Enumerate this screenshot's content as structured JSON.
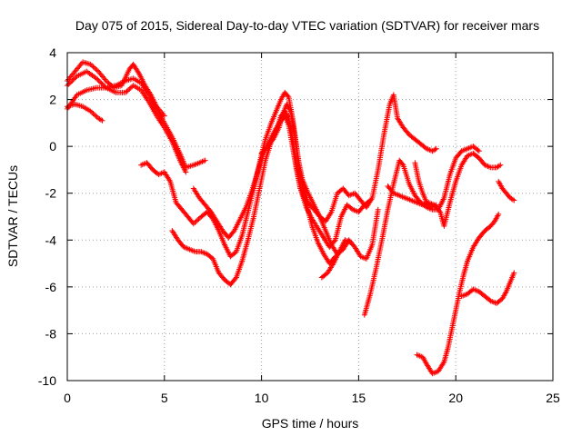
{
  "chart_data": {
    "type": "scatter",
    "title": "Day 075 of 2015, Sidereal Day-to-day VTEC variation (SDTVAR) for receiver mars",
    "xlabel": "GPS time / hours",
    "ylabel": "SDTVAR / TECUs",
    "xlim": [
      0,
      25
    ],
    "ylim": [
      -10,
      4
    ],
    "xticks": [
      0,
      5,
      10,
      15,
      20,
      25
    ],
    "yticks": [
      -10,
      -8,
      -6,
      -4,
      -2,
      0,
      2,
      4
    ],
    "grid": true,
    "marker": "+",
    "color": "#ff0000",
    "series": [
      {
        "points": [
          [
            0,
            2.8
          ],
          [
            0.4,
            3.2
          ],
          [
            0.8,
            3.6
          ],
          [
            1.2,
            3.5
          ],
          [
            1.6,
            3.2
          ],
          [
            2,
            2.8
          ],
          [
            2.4,
            2.5
          ],
          [
            2.8,
            2.6
          ],
          [
            3.2,
            3.3
          ],
          [
            3.4,
            3.5
          ],
          [
            3.7,
            3.1
          ],
          [
            4.0,
            2.6
          ],
          [
            4.3,
            2.2
          ],
          [
            4.6,
            1.7
          ],
          [
            5.0,
            1.3
          ]
        ]
      },
      {
        "points": [
          [
            0,
            2.6
          ],
          [
            0.5,
            3.0
          ],
          [
            1.0,
            3.2
          ],
          [
            1.5,
            2.9
          ],
          [
            2,
            2.5
          ],
          [
            2.5,
            2.3
          ],
          [
            3,
            2.3
          ],
          [
            3.4,
            2.6
          ],
          [
            3.8,
            2.4
          ],
          [
            4.2,
            1.9
          ],
          [
            4.6,
            1.3
          ],
          [
            5,
            0.8
          ],
          [
            5.4,
            0.2
          ],
          [
            5.8,
            -0.6
          ],
          [
            6.1,
            -1.1
          ]
        ]
      },
      {
        "points": [
          [
            0,
            1.6
          ],
          [
            0.5,
            2.2
          ],
          [
            1,
            2.4
          ],
          [
            1.5,
            2.5
          ],
          [
            2,
            2.5
          ],
          [
            2.5,
            2.6
          ],
          [
            3,
            2.8
          ],
          [
            3.4,
            2.9
          ],
          [
            3.8,
            2.7
          ],
          [
            4.2,
            2.2
          ],
          [
            4.6,
            1.6
          ],
          [
            5,
            1.0
          ],
          [
            5.4,
            0.4
          ],
          [
            5.8,
            -0.3
          ],
          [
            6.1,
            -0.9
          ],
          [
            6.5,
            -0.8
          ],
          [
            6.8,
            -0.7
          ],
          [
            7.1,
            -0.6
          ]
        ]
      },
      {
        "points": [
          [
            0,
            1.7
          ],
          [
            0.4,
            1.8
          ],
          [
            0.8,
            1.7
          ],
          [
            1.2,
            1.5
          ],
          [
            1.6,
            1.2
          ],
          [
            1.8,
            1.1
          ]
        ]
      },
      {
        "points": [
          [
            3.8,
            -0.8
          ],
          [
            4.1,
            -0.7
          ],
          [
            4.4,
            -1.0
          ],
          [
            4.7,
            -1.2
          ],
          [
            5.0,
            -1.1
          ],
          [
            5.3,
            -1.5
          ],
          [
            5.6,
            -2.4
          ],
          [
            5.9,
            -2.7
          ],
          [
            6.2,
            -3.0
          ],
          [
            6.5,
            -3.3
          ],
          [
            6.9,
            -3.0
          ],
          [
            7.2,
            -2.8
          ],
          [
            7.5,
            -3.1
          ],
          [
            7.8,
            -3.6
          ],
          [
            8.1,
            -4.2
          ],
          [
            8.4,
            -4.7
          ],
          [
            8.7,
            -4.5
          ],
          [
            9.0,
            -3.8
          ],
          [
            9.3,
            -2.8
          ],
          [
            9.6,
            -1.8
          ],
          [
            9.9,
            -0.7
          ],
          [
            10.2,
            0.3
          ],
          [
            10.5,
            1.0
          ],
          [
            10.8,
            1.6
          ],
          [
            11.0,
            2.0
          ],
          [
            11.2,
            2.3
          ],
          [
            11.4,
            2.1
          ],
          [
            11.6,
            1.2
          ],
          [
            11.8,
            0.0
          ],
          [
            12.0,
            -1.2
          ],
          [
            12.2,
            -1.9
          ],
          [
            12.4,
            -2.4
          ],
          [
            12.7,
            -2.7
          ],
          [
            13.0,
            -3.0
          ],
          [
            13.3,
            -3.2
          ],
          [
            13.6,
            -2.8
          ],
          [
            13.9,
            -2.0
          ],
          [
            14.2,
            -1.8
          ],
          [
            14.5,
            -2.1
          ],
          [
            14.8,
            -2.0
          ],
          [
            15.1,
            -2.3
          ],
          [
            15.4,
            -2.6
          ],
          [
            15.7,
            -2.2
          ],
          [
            16.0,
            -1.0
          ],
          [
            16.3,
            0.5
          ],
          [
            16.6,
            1.8
          ],
          [
            16.8,
            2.2
          ],
          [
            17.0,
            1.2
          ],
          [
            17.3,
            0.8
          ],
          [
            17.6,
            0.5
          ],
          [
            17.9,
            0.3
          ],
          [
            18.2,
            0.1
          ],
          [
            18.5,
            -0.1
          ],
          [
            18.8,
            -0.2
          ],
          [
            19.0,
            -0.1
          ]
        ]
      },
      {
        "points": [
          [
            5.4,
            -3.6
          ],
          [
            5.7,
            -4.0
          ],
          [
            6.0,
            -4.3
          ],
          [
            6.3,
            -4.4
          ],
          [
            6.6,
            -4.5
          ],
          [
            6.9,
            -4.5
          ],
          [
            7.2,
            -4.6
          ],
          [
            7.5,
            -4.8
          ],
          [
            7.8,
            -5.4
          ],
          [
            8.1,
            -5.7
          ],
          [
            8.4,
            -5.9
          ],
          [
            8.7,
            -5.6
          ],
          [
            9.0,
            -4.9
          ],
          [
            9.3,
            -4.0
          ],
          [
            9.6,
            -3.0
          ],
          [
            9.9,
            -1.8
          ],
          [
            10.2,
            -0.6
          ],
          [
            10.5,
            0.2
          ],
          [
            10.8,
            0.8
          ],
          [
            11.0,
            1.3
          ],
          [
            11.2,
            1.5
          ],
          [
            11.4,
            1.2
          ],
          [
            11.6,
            0.3
          ],
          [
            11.8,
            -0.8
          ],
          [
            12.0,
            -1.8
          ],
          [
            12.3,
            -2.6
          ],
          [
            12.6,
            -3.1
          ],
          [
            12.9,
            -3.5
          ],
          [
            13.2,
            -3.9
          ],
          [
            13.5,
            -4.3
          ],
          [
            13.8,
            -4.0
          ],
          [
            14.1,
            -3.0
          ],
          [
            14.4,
            -2.5
          ],
          [
            14.7,
            -2.7
          ],
          [
            15.0,
            -2.8
          ],
          [
            15.3,
            -2.5
          ],
          [
            15.6,
            -2.3
          ]
        ]
      },
      {
        "points": [
          [
            6.5,
            -1.8
          ],
          [
            6.8,
            -2.2
          ],
          [
            7.1,
            -2.5
          ],
          [
            7.4,
            -2.8
          ],
          [
            7.7,
            -3.2
          ],
          [
            8.0,
            -3.6
          ],
          [
            8.3,
            -3.9
          ],
          [
            8.6,
            -3.6
          ],
          [
            8.9,
            -3.1
          ],
          [
            9.2,
            -2.6
          ],
          [
            9.5,
            -1.9
          ],
          [
            9.8,
            -1.1
          ],
          [
            10.1,
            -0.3
          ],
          [
            10.4,
            0.2
          ],
          [
            10.7,
            0.7
          ],
          [
            11.0,
            1.1
          ],
          [
            11.2,
            1.3
          ],
          [
            11.4,
            0.9
          ],
          [
            11.6,
            0.0
          ],
          [
            11.8,
            -1.0
          ],
          [
            12.0,
            -1.8
          ],
          [
            12.3,
            -2.4
          ],
          [
            12.6,
            -3.4
          ],
          [
            12.9,
            -4.1
          ],
          [
            13.2,
            -4.6
          ],
          [
            13.5,
            -5.0
          ],
          [
            13.8,
            -4.7
          ]
        ]
      },
      {
        "points": [
          [
            10.0,
            -0.3
          ],
          [
            10.3,
            0.0
          ],
          [
            10.6,
            0.3
          ],
          [
            10.9,
            0.8
          ],
          [
            11.1,
            1.4
          ],
          [
            11.3,
            1.8
          ],
          [
            11.5,
            1.5
          ],
          [
            11.7,
            0.5
          ],
          [
            11.9,
            -0.6
          ],
          [
            12.1,
            -1.4
          ],
          [
            12.4,
            -2.0
          ],
          [
            12.7,
            -2.5
          ],
          [
            13.0,
            -3.0
          ],
          [
            13.3,
            -3.6
          ],
          [
            13.6,
            -4.2
          ],
          [
            13.9,
            -4.6
          ],
          [
            14.2,
            -4.4
          ],
          [
            14.5,
            -4.0
          ],
          [
            14.8,
            -4.3
          ],
          [
            15.1,
            -4.7
          ],
          [
            15.4,
            -4.8
          ],
          [
            15.7,
            -4.2
          ],
          [
            16.0,
            -2.7
          ]
        ]
      },
      {
        "points": [
          [
            13.1,
            -5.6
          ],
          [
            13.4,
            -5.4
          ],
          [
            13.7,
            -5.0
          ],
          [
            14.0,
            -4.5
          ],
          [
            14.3,
            -4.0
          ],
          [
            14.6,
            -4.1
          ]
        ]
      },
      {
        "points": [
          [
            15.3,
            -7.2
          ],
          [
            15.6,
            -6.3
          ],
          [
            15.9,
            -5.2
          ],
          [
            16.2,
            -4.0
          ],
          [
            16.5,
            -2.7
          ],
          [
            16.8,
            -1.6
          ],
          [
            17.1,
            -0.6
          ],
          [
            17.3,
            -0.8
          ],
          [
            17.6,
            -1.6
          ],
          [
            17.9,
            -2.1
          ],
          [
            18.2,
            -2.4
          ],
          [
            18.5,
            -2.6
          ],
          [
            18.8,
            -2.7
          ],
          [
            19.1,
            -2.7
          ],
          [
            19.4,
            -2.2
          ],
          [
            19.7,
            -1.2
          ],
          [
            20.0,
            -0.5
          ],
          [
            20.3,
            -0.2
          ],
          [
            20.6,
            -0.1
          ],
          [
            20.9,
            0.0
          ],
          [
            21.2,
            -0.2
          ]
        ]
      },
      {
        "points": [
          [
            16.5,
            -1.7
          ],
          [
            16.8,
            -2.0
          ],
          [
            17.1,
            -2.1
          ],
          [
            17.4,
            -2.2
          ],
          [
            17.7,
            -2.3
          ],
          [
            18.0,
            -2.4
          ],
          [
            18.3,
            -2.5
          ],
          [
            18.6,
            -2.4
          ],
          [
            18.9,
            -2.5
          ],
          [
            19.2,
            -2.8
          ],
          [
            19.4,
            -3.4
          ],
          [
            19.7,
            -2.4
          ],
          [
            20.0,
            -1.5
          ],
          [
            20.3,
            -0.8
          ],
          [
            20.6,
            -0.4
          ],
          [
            20.9,
            -0.3
          ],
          [
            21.2,
            -0.5
          ],
          [
            21.5,
            -0.8
          ],
          [
            21.8,
            -0.9
          ],
          [
            22.1,
            -0.9
          ],
          [
            22.3,
            -0.8
          ]
        ]
      },
      {
        "points": [
          [
            17.9,
            -0.7
          ],
          [
            18.1,
            -1.5
          ],
          [
            18.3,
            -2.0
          ],
          [
            18.5,
            -2.4
          ],
          [
            18.8,
            -2.6
          ],
          [
            19.0,
            -2.5
          ]
        ]
      },
      {
        "points": [
          [
            18.0,
            -8.9
          ],
          [
            18.3,
            -9.0
          ],
          [
            18.5,
            -9.3
          ],
          [
            18.8,
            -9.7
          ],
          [
            19.1,
            -9.6
          ],
          [
            19.4,
            -9.2
          ],
          [
            19.6,
            -8.6
          ],
          [
            19.8,
            -7.8
          ],
          [
            20.0,
            -7.0
          ],
          [
            20.2,
            -6.2
          ],
          [
            20.4,
            -5.5
          ],
          [
            20.6,
            -4.9
          ],
          [
            20.9,
            -4.3
          ],
          [
            21.2,
            -3.9
          ],
          [
            21.5,
            -3.6
          ],
          [
            21.8,
            -3.4
          ],
          [
            22.0,
            -3.2
          ],
          [
            22.2,
            -2.9
          ]
        ]
      },
      {
        "points": [
          [
            20.3,
            -6.4
          ],
          [
            20.6,
            -6.3
          ],
          [
            20.9,
            -6.1
          ],
          [
            21.2,
            -6.2
          ],
          [
            21.5,
            -6.4
          ],
          [
            21.8,
            -6.6
          ],
          [
            22.1,
            -6.7
          ],
          [
            22.4,
            -6.5
          ],
          [
            22.6,
            -6.2
          ],
          [
            22.8,
            -5.8
          ],
          [
            23.0,
            -5.4
          ]
        ]
      },
      {
        "points": [
          [
            22.2,
            -1.5
          ],
          [
            22.4,
            -1.8
          ],
          [
            22.6,
            -2.0
          ],
          [
            22.8,
            -2.2
          ],
          [
            23.0,
            -2.3
          ]
        ]
      }
    ]
  }
}
